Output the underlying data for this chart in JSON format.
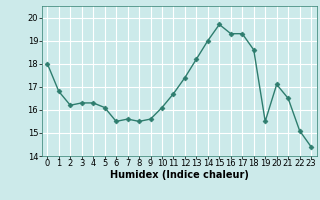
{
  "x": [
    0,
    1,
    2,
    3,
    4,
    5,
    6,
    7,
    8,
    9,
    10,
    11,
    12,
    13,
    14,
    15,
    16,
    17,
    18,
    19,
    20,
    21,
    22,
    23
  ],
  "y": [
    18.0,
    16.8,
    16.2,
    16.3,
    16.3,
    16.1,
    15.5,
    15.6,
    15.5,
    15.6,
    16.1,
    16.7,
    17.4,
    18.2,
    19.0,
    19.7,
    19.3,
    19.3,
    18.6,
    15.5,
    17.1,
    16.5,
    15.1,
    14.4
  ],
  "line_color": "#2e7d6e",
  "marker": "D",
  "marker_size": 2.5,
  "bg_color": "#cceaea",
  "grid_color": "#ffffff",
  "xlabel": "Humidex (Indice chaleur)",
  "ylim": [
    14,
    20.5
  ],
  "xlim": [
    -0.5,
    23.5
  ],
  "yticks": [
    14,
    15,
    16,
    17,
    18,
    19,
    20
  ],
  "xticks": [
    0,
    1,
    2,
    3,
    4,
    5,
    6,
    7,
    8,
    9,
    10,
    11,
    12,
    13,
    14,
    15,
    16,
    17,
    18,
    19,
    20,
    21,
    22,
    23
  ],
  "label_fontsize": 7,
  "tick_fontsize": 6,
  "line_width": 1.0,
  "grid_line_color": "#b0d8d8",
  "spine_color": "#2e7d6e"
}
